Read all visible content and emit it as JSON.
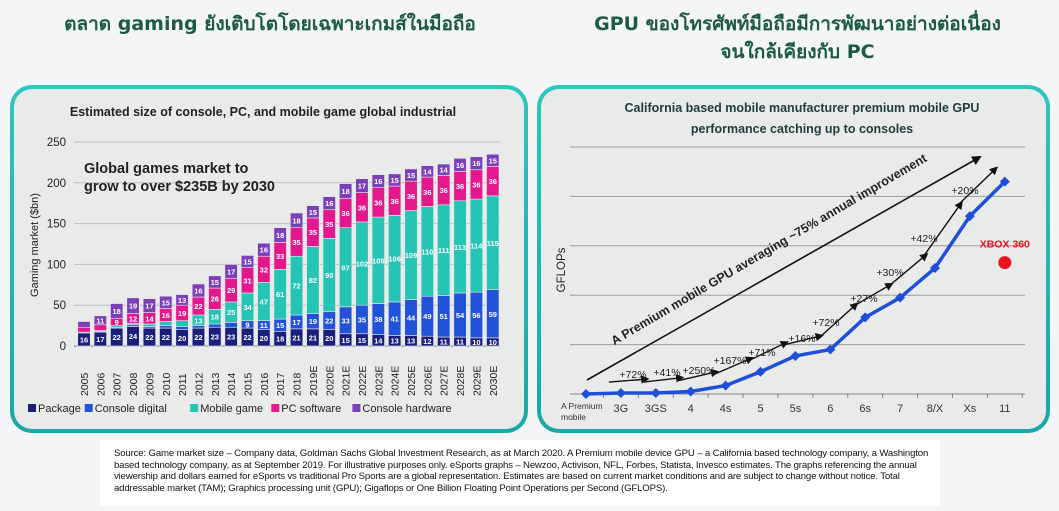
{
  "headings": {
    "left": "ตลาด gaming ยังเติบโตโดยเฉพาะเกมส์ในมือถือ",
    "right_line1": "GPU ของโทรศัพท์มือถือมีการพัฒนาอย่างต่อเนื่อง",
    "right_line2": "จนใกล้เคียงกับ PC"
  },
  "footer": "Source: Game market size – Company data, Goldman Sachs Global Investment Research, as at March 2020. A Premium mobile device GPU – a California based technology company, a Washington based technology company, as at  September 2019. For illustrative purposes only. eSports graphs – Newzoo, Activison, NFL, Forbes, Statista, Invesco estimates. The graphs referencing the annual viewership and dollars earned for eSports vs traditional Pro Sports are a global representation. Estimates are based on current market conditions and are subject to change without notice. Total addressable market (TAM); Graphics processing unit (GPU); Gigaflops or One Billion Floating Point Operations per Second (GFLOPS).",
  "chart_data": [
    {
      "type": "bar",
      "stacked": true,
      "title": "Estimated size of console, PC, and mobile game global industrial",
      "annotation": "Global games market to grow to over $235B by 2030",
      "xlabel": "",
      "ylabel": "Gaming market ($bn)",
      "ylim": [
        0,
        250
      ],
      "yticks": [
        0,
        50,
        100,
        150,
        200,
        250
      ],
      "grid": true,
      "legend_position": "bottom",
      "categories": [
        "2005",
        "2006",
        "2007",
        "2008",
        "2009",
        "2010",
        "2011",
        "2012",
        "2013",
        "2014",
        "2015",
        "2016",
        "2017",
        "2018",
        "2019E",
        "2020E",
        "2021E",
        "2022E",
        "2023E",
        "2024E",
        "2025E",
        "2026E",
        "2027E",
        "2028E",
        "2029E",
        "2030E"
      ],
      "series": [
        {
          "name": "Package",
          "color": "#1b1f7c",
          "values": [
            16,
            17,
            22,
            24,
            22,
            22,
            20,
            22,
            23,
            23,
            22,
            20,
            18,
            21,
            21,
            20,
            15,
            15,
            14,
            13,
            13,
            12,
            11,
            11,
            10,
            10
          ]
        },
        {
          "name": "Console digital",
          "color": "#2152d8",
          "values": [
            1,
            1,
            1,
            2,
            2,
            3,
            4,
            3,
            4,
            6,
            9,
            11,
            15,
            17,
            19,
            22,
            33,
            35,
            38,
            41,
            44,
            49,
            51,
            54,
            56,
            59
          ]
        },
        {
          "name": "Mobile game",
          "color": "#25c4b4",
          "values": [
            0,
            1,
            2,
            2,
            3,
            5,
            7,
            13,
            18,
            25,
            34,
            47,
            61,
            72,
            82,
            90,
            97,
            102,
            106,
            106,
            109,
            110,
            111,
            113,
            114,
            115
          ]
        },
        {
          "name": "PC software",
          "color": "#e3188d",
          "values": [
            6,
            7,
            9,
            12,
            14,
            16,
            19,
            22,
            26,
            29,
            31,
            32,
            33,
            35,
            35,
            35,
            36,
            36,
            36,
            36,
            36,
            36,
            36,
            36,
            36,
            36
          ]
        },
        {
          "name": "Console hardware",
          "color": "#7b3fb8",
          "values": [
            7,
            11,
            18,
            19,
            17,
            15,
            13,
            16,
            15,
            17,
            15,
            16,
            18,
            18,
            15,
            16,
            18,
            17,
            16,
            15,
            15,
            14,
            14,
            16,
            16,
            15
          ]
        }
      ]
    },
    {
      "type": "line",
      "title": "California based mobile manufacturer premium mobile GPU performance catching up to consoles",
      "xlabel": "",
      "ylabel": "GFLOPs",
      "ylim": [
        0,
        5
      ],
      "grid": true,
      "categories": [
        "A Premium mobile",
        "3G",
        "3GS",
        "4",
        "4s",
        "5",
        "5s",
        "6",
        "6s",
        "7",
        "8/X",
        "Xs",
        "11"
      ],
      "series": [
        {
          "name": "Premium mobile GPU",
          "color": "#1f4fd8",
          "values": [
            0,
            0.02,
            0.02,
            0.05,
            0.17,
            0.45,
            0.77,
            0.9,
            1.55,
            1.95,
            2.55,
            3.6,
            4.3
          ]
        }
      ],
      "growth_labels": [
        "+72%",
        "+41%",
        "+250%",
        "+167%",
        "+71%",
        "+16%",
        "+72%",
        "+27%",
        "+30%",
        "+42%",
        "+20%"
      ],
      "trend_annotation": "A Premium mobile GPU averaging ~75% annual improvement",
      "reference_point": {
        "label": "XBOX 360",
        "category": "11",
        "value": 2.66,
        "color": "#e8141b"
      }
    }
  ]
}
